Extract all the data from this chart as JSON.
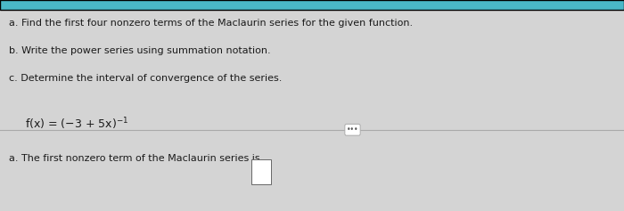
{
  "background_color": "#d4d4d4",
  "top_bar_color": "#4ab8c8",
  "panel_bg_color": "#ebebeb",
  "divider_color": "#aaaaaa",
  "text_color": "#1a1a1a",
  "line1": "a. Find the first four nonzero terms of the Maclaurin series for the given function.",
  "line2": "b. Write the power series using summation notation.",
  "line3": "c. Determine the interval of convergence of the series.",
  "bottom_text": "a. The first nonzero term of the Maclaurin series is",
  "font_size_main": 8.0,
  "font_size_function": 9.0,
  "font_size_bottom": 8.0
}
